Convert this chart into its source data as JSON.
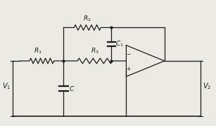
{
  "fig_width": 3.07,
  "fig_height": 1.8,
  "dpi": 100,
  "bg_color": "#eceae4",
  "line_color": "#1a1a1a",
  "lw": 0.9,
  "V1_label": "$V_1$",
  "V2_label": "$V_2$",
  "R1_label": "$R_1$",
  "R2_label": "$R_2$",
  "R3_label": "$R_3$",
  "C_label": "$C$",
  "C1_label": "$C_1$",
  "xlim": [
    0,
    10
  ],
  "ylim": [
    0,
    6
  ]
}
